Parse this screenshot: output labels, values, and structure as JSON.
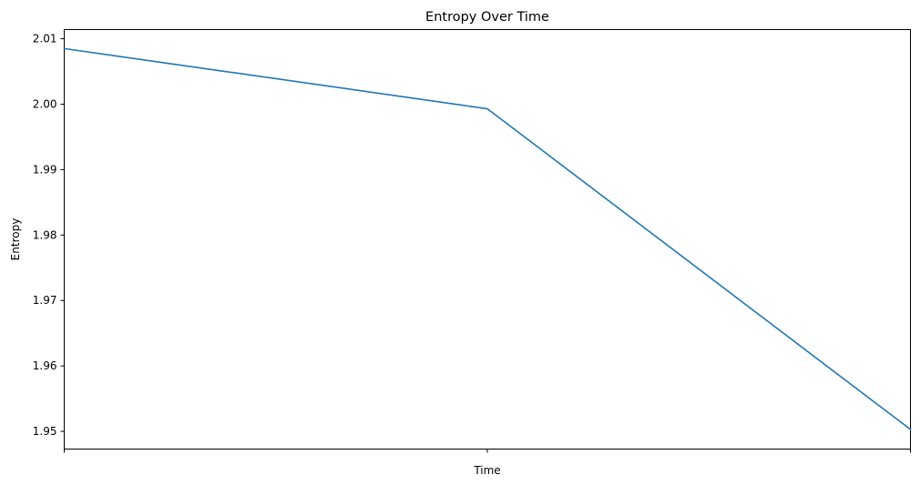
{
  "chart_data": {
    "type": "line",
    "title": "Entropy Over Time",
    "xlabel": "Time",
    "ylabel": "Entropy",
    "x": [
      0,
      1,
      2
    ],
    "x_tick_labels": [
      "",
      "",
      ""
    ],
    "series": [
      {
        "values": [
          2.0085,
          1.9993,
          1.9503
        ],
        "color": "#1f77b4"
      }
    ],
    "xlim": [
      0,
      2
    ],
    "ylim": [
      1.9473,
      2.0114
    ],
    "yticks": [
      1.95,
      1.96,
      1.97,
      1.98,
      1.99,
      2.0,
      2.01
    ],
    "ytick_labels": [
      "1.95",
      "1.96",
      "1.97",
      "1.98",
      "1.99",
      "2.00",
      "2.01"
    ],
    "grid": false,
    "legend": "none"
  }
}
